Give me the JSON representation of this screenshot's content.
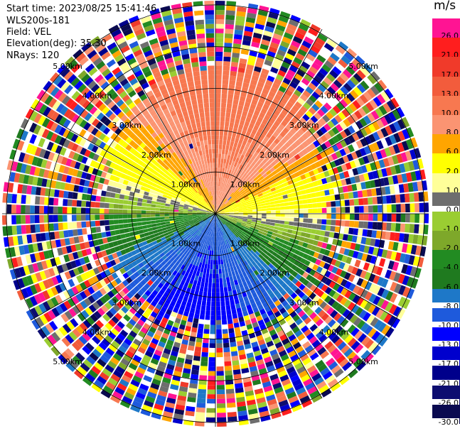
{
  "header": {
    "start_time": "Start time: 2023/08/25 15:41:46",
    "instrument": "WLS200s-181",
    "field": "Field: VEL",
    "elevation": "Elevation(deg): 35.30",
    "nrays": "NRays: 120"
  },
  "colorbar": {
    "unit": "m/s",
    "levels": [
      {
        "label": "26.0",
        "color": "#ff1493"
      },
      {
        "label": "21.0",
        "color": "#ff1e1e"
      },
      {
        "label": "17.0",
        "color": "#f03a2a"
      },
      {
        "label": "13.0",
        "color": "#f25c3c"
      },
      {
        "label": "10.0",
        "color": "#f77850"
      },
      {
        "label": "8.0",
        "color": "#fb9472"
      },
      {
        "label": "6.0",
        "color": "#ffa500"
      },
      {
        "label": "2.0",
        "color": "#ffff00"
      },
      {
        "label": "1.0",
        "color": "#ffff99"
      },
      {
        "label": "0.0",
        "color": "#6e6e6e"
      },
      {
        "label": "-1.0",
        "color": "#9acd32"
      },
      {
        "label": "-2.0",
        "color": "#7ea82a"
      },
      {
        "label": "-4.0",
        "color": "#228b22"
      },
      {
        "label": "-6.0",
        "color": "#1f7a1f"
      },
      {
        "label": "-8.0",
        "color": "#1e78c8"
      },
      {
        "label": "-10.0",
        "color": "#1e5adc"
      },
      {
        "label": "-13.0",
        "color": "#0000ff"
      },
      {
        "label": "-17.0",
        "color": "#0000cd"
      },
      {
        "label": "-21.0",
        "color": "#00008b"
      },
      {
        "label": "-26.0",
        "color": "#0d0d70"
      },
      {
        "label": "-30.0",
        "color": "#0a0a50"
      }
    ]
  },
  "range_labels": [
    "1.00km",
    "2.00km",
    "3.00km",
    "4.00km",
    "5.00km"
  ],
  "chart_data": {
    "type": "heatmap",
    "projection": "polar PPI",
    "field": "VEL",
    "units": "m/s",
    "n_rays": 120,
    "elevation_deg": 35.3,
    "range_rings_km": [
      1.0,
      2.0,
      3.0,
      4.0,
      5.0
    ],
    "max_range_km": 5.1,
    "azimuth_spokes_deg": [
      0,
      30,
      60,
      90,
      120,
      150,
      180,
      210,
      240,
      270,
      300,
      330
    ],
    "velocity_pattern": {
      "inner_coherent_range_km": 2.6,
      "approx_values_by_azimuth": [
        {
          "azimuth_deg": 0,
          "value": 10.0
        },
        {
          "azimuth_deg": 45,
          "value": 2.0
        },
        {
          "azimuth_deg": 90,
          "value": 0.0
        },
        {
          "azimuth_deg": 135,
          "value": -4.0
        },
        {
          "azimuth_deg": 180,
          "value": -8.0
        },
        {
          "azimuth_deg": 225,
          "value": -4.0
        },
        {
          "azimuth_deg": 270,
          "value": 0.0
        },
        {
          "azimuth_deg": 315,
          "value": 2.0
        }
      ],
      "outer_region": "noise"
    }
  }
}
